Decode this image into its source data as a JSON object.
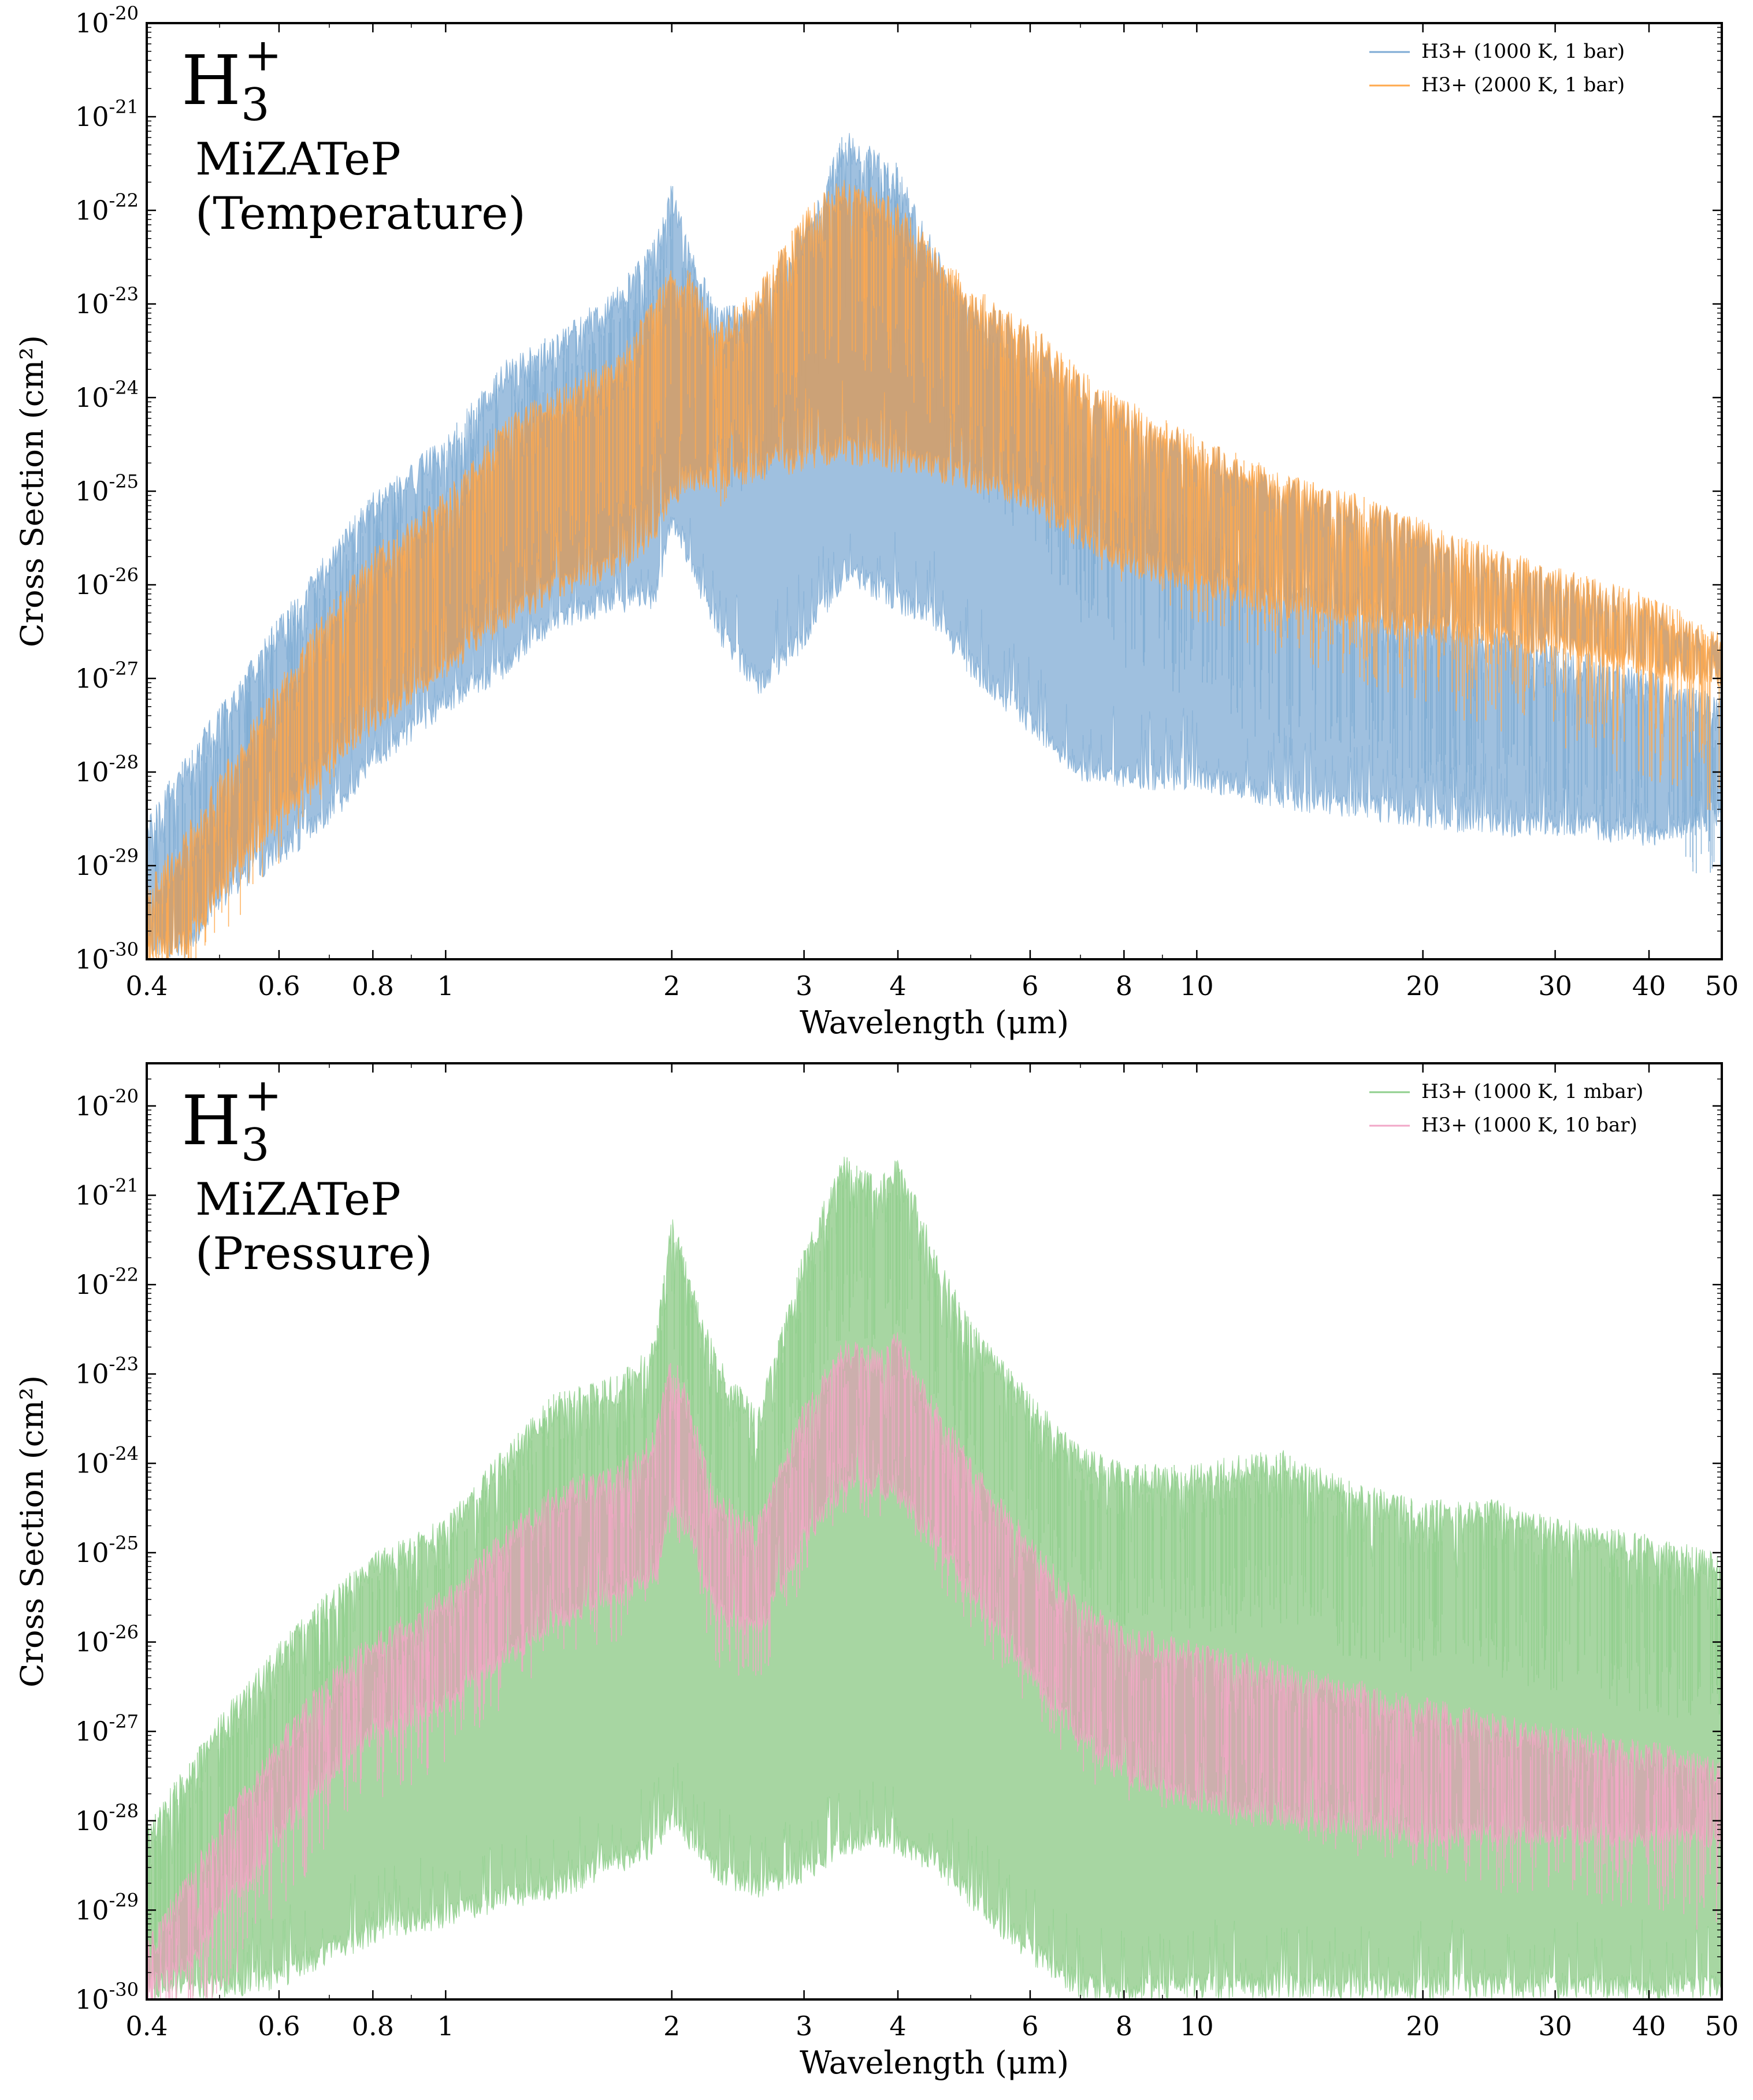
{
  "charts": [
    {
      "id": "temperature",
      "annotation": {
        "formula_main": "H",
        "formula_sub": "3",
        "formula_sup": "+",
        "line1": "MiZATeP",
        "line2": "(Temperature)"
      },
      "legend": [
        {
          "name": "H3+ (1000 K, 1 bar)",
          "color": "#7eabd4"
        },
        {
          "name": "H3+ (2000 K, 1 bar)",
          "color": "#ffa94d"
        }
      ],
      "xlabel": "Wavelength (μm)",
      "ylabel": "Cross Section (cm²)"
    },
    {
      "id": "pressure",
      "annotation": {
        "formula_main": "H",
        "formula_sub": "3",
        "formula_sup": "+",
        "line1": "MiZATeP",
        "line2": "(Pressure)"
      },
      "legend": [
        {
          "name": "H3+ (1000 K, 1 mbar)",
          "color": "#8fcf8c"
        },
        {
          "name": "H3+ (1000 K, 10 bar)",
          "color": "#f2a7c7"
        }
      ],
      "xlabel": "Wavelength (μm)",
      "ylabel": "Cross Section (cm²)"
    }
  ],
  "chart_data": [
    {
      "type": "area",
      "x_scale": "log",
      "y_scale": "log",
      "xlim": [
        0.4,
        50
      ],
      "ylim": [
        1e-30,
        1e-20
      ],
      "xticks": [
        0.4,
        0.6,
        0.8,
        1,
        2,
        3,
        4,
        6,
        8,
        10,
        20,
        30,
        40,
        50
      ],
      "xtick_labels": [
        "0.4",
        "0.6",
        "0.8",
        "1",
        "2",
        "3",
        "4",
        "6",
        "8",
        "10",
        "20",
        "30",
        "40",
        "50"
      ],
      "ytick_base": "10",
      "ytick_exponents": [
        "-30",
        "-29",
        "-28",
        "-27",
        "-26",
        "-25",
        "-24",
        "-23",
        "-22",
        "-21",
        "-20"
      ],
      "series": [
        {
          "name": "H3+ (1000 K, 1 bar)",
          "color": "#7eabd4",
          "fill": "#9fc0df",
          "x": [
            0.4,
            0.45,
            0.5,
            0.6,
            0.7,
            0.8,
            1.0,
            1.2,
            1.4,
            1.7,
            1.9,
            2.0,
            2.1,
            2.3,
            2.6,
            3.0,
            3.4,
            3.8,
            4.0,
            4.5,
            5.0,
            6.0,
            7.0,
            8.0,
            10,
            13,
            16,
            20,
            25,
            30,
            40,
            50
          ],
          "upper": [
            -28.5,
            -27.8,
            -27.3,
            -26.3,
            -25.6,
            -25.0,
            -24.4,
            -23.6,
            -23.3,
            -22.8,
            -22.3,
            -21.7,
            -22.3,
            -23.0,
            -23.0,
            -22.2,
            -21.1,
            -21.4,
            -21.5,
            -22.4,
            -23.0,
            -23.6,
            -24.4,
            -24.9,
            -25.3,
            -25.8,
            -26.0,
            -26.2,
            -26.4,
            -26.6,
            -26.9,
            -27.2
          ],
          "lower": [
            -30.0,
            -30.0,
            -29.5,
            -29.0,
            -28.6,
            -28.0,
            -27.4,
            -27.0,
            -26.5,
            -26.3,
            -26.3,
            -25.4,
            -25.8,
            -26.6,
            -27.2,
            -26.7,
            -26.0,
            -26.2,
            -26.3,
            -26.5,
            -27.0,
            -27.6,
            -28.1,
            -28.2,
            -28.2,
            -28.4,
            -28.5,
            -28.6,
            -28.7,
            -28.7,
            -28.8,
            -28.6
          ]
        },
        {
          "name": "H3+ (2000 K, 1 bar)",
          "color": "#ffa94d",
          "fill": "#cfa071",
          "x": [
            0.4,
            0.45,
            0.5,
            0.6,
            0.7,
            0.8,
            1.0,
            1.2,
            1.4,
            1.7,
            1.9,
            2.0,
            2.1,
            2.3,
            2.6,
            3.0,
            3.4,
            3.8,
            4.0,
            4.5,
            5.0,
            6.0,
            7.0,
            8.0,
            10,
            13,
            16,
            20,
            25,
            30,
            40,
            50
          ],
          "upper": [
            -29.2,
            -28.6,
            -28.0,
            -27.0,
            -26.2,
            -25.6,
            -25.0,
            -24.2,
            -23.9,
            -23.5,
            -22.9,
            -22.6,
            -22.6,
            -23.2,
            -22.8,
            -22.0,
            -21.6,
            -21.8,
            -21.9,
            -22.4,
            -22.8,
            -23.2,
            -23.7,
            -24.0,
            -24.4,
            -24.8,
            -25.0,
            -25.3,
            -25.6,
            -25.8,
            -26.1,
            -26.5
          ],
          "lower": [
            -30.0,
            -30.0,
            -29.4,
            -28.6,
            -28.0,
            -27.6,
            -27.0,
            -26.5,
            -26.2,
            -25.9,
            -25.6,
            -25.2,
            -25.0,
            -25.0,
            -24.9,
            -24.8,
            -24.7,
            -24.8,
            -24.8,
            -24.9,
            -25.0,
            -25.2,
            -25.6,
            -25.9,
            -26.1,
            -26.4,
            -26.5,
            -26.6,
            -26.7,
            -26.8,
            -27.0,
            -27.1
          ]
        }
      ]
    },
    {
      "type": "area",
      "x_scale": "log",
      "y_scale": "log",
      "xlim": [
        0.4,
        50
      ],
      "ylim": [
        1e-30,
        3e-20
      ],
      "xticks": [
        0.4,
        0.6,
        0.8,
        1,
        2,
        3,
        4,
        6,
        8,
        10,
        20,
        30,
        40,
        50
      ],
      "xtick_labels": [
        "0.4",
        "0.6",
        "0.8",
        "1",
        "2",
        "3",
        "4",
        "6",
        "8",
        "10",
        "20",
        "30",
        "40",
        "50"
      ],
      "ytick_base": "10",
      "ytick_exponents": [
        "-30",
        "-29",
        "-28",
        "-27",
        "-26",
        "-25",
        "-24",
        "-23",
        "-22",
        "-21",
        "-20"
      ],
      "series": [
        {
          "name": "H3+ (1000 K, 1 mbar)",
          "color": "#8fcf8c",
          "fill": "#a7d6a2",
          "x": [
            0.4,
            0.45,
            0.5,
            0.6,
            0.7,
            0.8,
            1.0,
            1.2,
            1.4,
            1.7,
            1.9,
            2.0,
            2.1,
            2.3,
            2.6,
            3.0,
            3.4,
            3.8,
            4.0,
            4.5,
            5.0,
            6.0,
            7.0,
            8.0,
            10,
            13,
            16,
            20,
            25,
            30,
            40,
            50
          ],
          "upper": [
            -28.0,
            -27.4,
            -26.8,
            -26.0,
            -25.4,
            -25.0,
            -24.6,
            -23.8,
            -23.2,
            -23.0,
            -22.6,
            -21.2,
            -21.8,
            -22.8,
            -23.4,
            -21.6,
            -20.5,
            -20.8,
            -20.5,
            -21.6,
            -22.4,
            -23.2,
            -23.8,
            -24.0,
            -24.0,
            -23.8,
            -24.2,
            -24.4,
            -24.4,
            -24.6,
            -24.8,
            -25.0
          ],
          "lower": [
            -30.0,
            -30.0,
            -30.0,
            -29.9,
            -29.6,
            -29.4,
            -29.2,
            -29.0,
            -28.9,
            -28.6,
            -28.4,
            -28.1,
            -28.3,
            -28.7,
            -28.9,
            -28.7,
            -28.4,
            -28.3,
            -28.4,
            -28.6,
            -29.0,
            -29.6,
            -30.0,
            -30.0,
            -30.0,
            -30.0,
            -30.0,
            -30.0,
            -30.0,
            -30.0,
            -30.0,
            -30.0
          ]
        },
        {
          "name": "H3+ (1000 K, 10 bar)",
          "color": "#f2a7c7",
          "fill": "#ceadae",
          "x": [
            0.4,
            0.45,
            0.5,
            0.6,
            0.7,
            0.8,
            1.0,
            1.2,
            1.4,
            1.7,
            1.9,
            2.0,
            2.1,
            2.3,
            2.6,
            3.0,
            3.4,
            3.8,
            4.0,
            4.5,
            5.0,
            6.0,
            7.0,
            8.0,
            10,
            13,
            16,
            20,
            25,
            30,
            40,
            50
          ],
          "upper": [
            -29.3,
            -28.6,
            -28.0,
            -27.0,
            -26.3,
            -25.9,
            -25.4,
            -24.7,
            -24.2,
            -24.0,
            -23.6,
            -22.7,
            -23.2,
            -24.3,
            -24.6,
            -23.3,
            -22.6,
            -22.7,
            -22.5,
            -23.3,
            -23.9,
            -24.8,
            -25.5,
            -25.8,
            -26.0,
            -26.2,
            -26.4,
            -26.6,
            -26.8,
            -26.9,
            -27.1,
            -27.3
          ],
          "lower": [
            -30.0,
            -29.8,
            -29.2,
            -28.3,
            -27.6,
            -27.2,
            -26.8,
            -26.3,
            -25.9,
            -25.6,
            -25.4,
            -24.6,
            -24.9,
            -25.8,
            -26.0,
            -25.0,
            -24.4,
            -24.4,
            -24.5,
            -25.0,
            -25.6,
            -26.5,
            -27.2,
            -27.6,
            -27.9,
            -28.1,
            -28.2,
            -28.3,
            -28.3,
            -28.3,
            -28.3,
            -28.3
          ]
        }
      ]
    }
  ]
}
